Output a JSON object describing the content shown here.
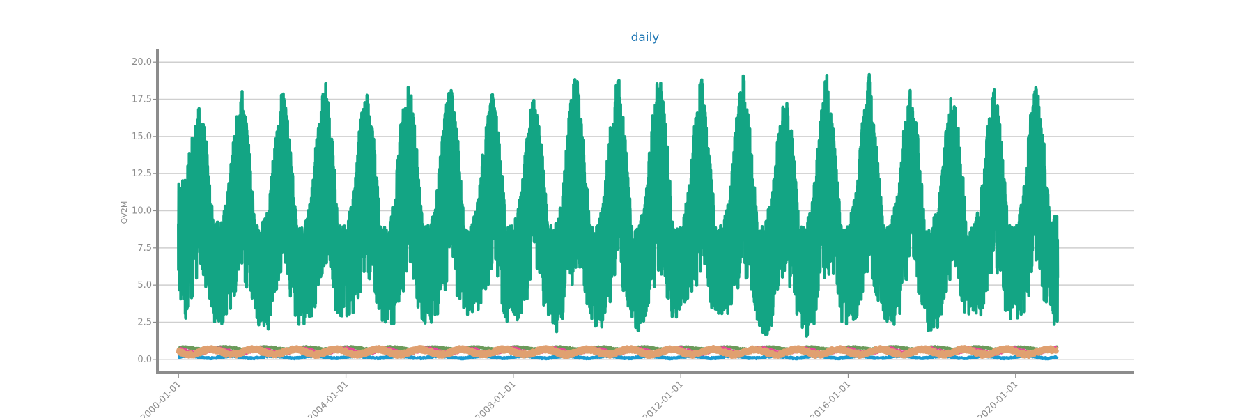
{
  "chart_data": {
    "type": "line",
    "title": "daily",
    "xlabel": "",
    "ylabel": "QV2M",
    "x_type": "date",
    "xlim": [
      "1999-07-01",
      "2022-11-01"
    ],
    "ylim": [
      -0.9,
      20.9
    ],
    "x_ticks": [
      "2000-01-01",
      "2004-01-01",
      "2008-01-01",
      "2012-01-01",
      "2016-01-01",
      "2020-01-01"
    ],
    "x_tick_labels": [
      "2000-01-01",
      "2004-01-01",
      "2008-01-01",
      "2012-01-01",
      "2016-01-01",
      "2020-01-01"
    ],
    "y_ticks": [
      0.0,
      2.5,
      5.0,
      7.5,
      10.0,
      12.5,
      15.0,
      17.5,
      20.0
    ],
    "y_tick_labels": [
      "0.0",
      "2.5",
      "5.0",
      "7.5",
      "10.0",
      "12.5",
      "15.0",
      "17.5",
      "20.0"
    ],
    "grid": "horizontal",
    "data_start": "2000-01-01",
    "data_end": "2021-01-01",
    "series": [
      {
        "color": "#13a584",
        "x": [
          "2000-01-01",
          "2000-03-01",
          "2000-05-01",
          "2000-07-01",
          "2000-09-01",
          "2000-11-01",
          "2001-01-01",
          "2001-03-01",
          "2001-05-01",
          "2001-07-01",
          "2001-09-01",
          "2001-11-01",
          "2002-01-01",
          "2002-03-01",
          "2002-05-01",
          "2002-07-01",
          "2002-09-01",
          "2002-11-01",
          "2003-01-01",
          "2003-03-01",
          "2003-05-01",
          "2003-07-01",
          "2003-09-01",
          "2003-11-01",
          "2004-01-01",
          "2004-03-01",
          "2004-05-01",
          "2004-07-01",
          "2004-09-01",
          "2004-11-01",
          "2005-01-01",
          "2005-03-01",
          "2005-05-01",
          "2005-07-01",
          "2005-09-01",
          "2005-11-01",
          "2006-01-01",
          "2006-03-01",
          "2006-05-01",
          "2006-07-01",
          "2006-09-01",
          "2006-11-01",
          "2007-01-01",
          "2007-03-01",
          "2007-05-01",
          "2007-07-01",
          "2007-09-01",
          "2007-11-01",
          "2008-01-01",
          "2008-03-01",
          "2008-05-01",
          "2008-07-01",
          "2008-09-01",
          "2008-11-01",
          "2009-01-01",
          "2009-03-01",
          "2009-05-01",
          "2009-07-01",
          "2009-09-01",
          "2009-11-01",
          "2010-01-01",
          "2010-03-01",
          "2010-05-01",
          "2010-07-01",
          "2010-09-01",
          "2010-11-01",
          "2011-01-01",
          "2011-03-01",
          "2011-05-01",
          "2011-07-01",
          "2011-09-01",
          "2011-11-01",
          "2012-01-01",
          "2012-03-01",
          "2012-05-01",
          "2012-07-01",
          "2012-09-01",
          "2012-11-01",
          "2013-01-01",
          "2013-03-01",
          "2013-05-01",
          "2013-07-01",
          "2013-09-01",
          "2013-11-01",
          "2014-01-01",
          "2014-03-01",
          "2014-05-01",
          "2014-07-01",
          "2014-09-01",
          "2014-11-01",
          "2015-01-01",
          "2015-03-01",
          "2015-05-01",
          "2015-07-01",
          "2015-09-01",
          "2015-11-01",
          "2016-01-01",
          "2016-03-01",
          "2016-05-01",
          "2016-07-01",
          "2016-09-01",
          "2016-11-01",
          "2017-01-01",
          "2017-03-01",
          "2017-05-01",
          "2017-07-01",
          "2017-09-01",
          "2017-11-01",
          "2018-01-01",
          "2018-03-01",
          "2018-05-01",
          "2018-07-01",
          "2018-09-01",
          "2018-11-01",
          "2019-01-01",
          "2019-03-01",
          "2019-05-01",
          "2019-07-01",
          "2019-09-01",
          "2019-11-01",
          "2020-01-01",
          "2020-03-01",
          "2020-05-01",
          "2020-07-01",
          "2020-09-01",
          "2020-11-01",
          "2021-01-01"
        ],
        "min": [
          2.0,
          2.5,
          4.0,
          6.0,
          4.0,
          2.5,
          2.0,
          2.5,
          4.0,
          6.0,
          4.0,
          2.5,
          2.0,
          2.0,
          4.0,
          6.0,
          4.0,
          2.5,
          1.6,
          2.5,
          4.0,
          6.0,
          4.0,
          2.5,
          2.8,
          3.0,
          4.0,
          6.0,
          4.0,
          2.5,
          2.0,
          2.0,
          4.0,
          6.0,
          4.0,
          2.5,
          2.1,
          2.5,
          4.0,
          6.0,
          4.0,
          2.5,
          2.6,
          3.0,
          4.0,
          6.0,
          4.0,
          2.5,
          2.2,
          2.5,
          4.0,
          6.0,
          4.0,
          2.5,
          1.7,
          2.0,
          4.0,
          6.0,
          4.0,
          2.5,
          1.5,
          2.0,
          4.0,
          6.0,
          4.0,
          2.5,
          1.7,
          2.5,
          4.0,
          6.0,
          4.0,
          2.5,
          3.2,
          3.5,
          4.0,
          6.0,
          4.0,
          2.5,
          3.0,
          3.0,
          4.0,
          6.0,
          4.0,
          2.5,
          0.9,
          2.0,
          4.0,
          6.0,
          4.0,
          2.5,
          1.4,
          2.0,
          4.0,
          6.0,
          4.0,
          2.5,
          1.8,
          2.0,
          4.0,
          6.0,
          4.0,
          2.5,
          1.8,
          2.0,
          4.0,
          6.0,
          4.0,
          2.5,
          1.3,
          2.0,
          4.0,
          6.0,
          4.0,
          2.5,
          2.6,
          2.5,
          4.0,
          6.0,
          4.0,
          2.5,
          2.4,
          2.5,
          4.0,
          6.0,
          4.0,
          2.5,
          2.1
        ],
        "max": [
          11.8,
          12.5,
          15.0,
          17.2,
          15.0,
          9.0,
          9.5,
          11.0,
          15.5,
          18.5,
          15.0,
          9.0,
          9.5,
          11.0,
          15.5,
          18.5,
          15.0,
          9.0,
          9.0,
          11.0,
          16.0,
          19.3,
          15.0,
          9.0,
          9.0,
          11.0,
          16.0,
          18.2,
          15.0,
          9.0,
          9.0,
          11.0,
          16.5,
          19.5,
          15.0,
          9.0,
          9.0,
          11.0,
          16.0,
          18.8,
          15.0,
          9.0,
          9.0,
          11.0,
          15.5,
          18.2,
          15.0,
          9.0,
          9.0,
          11.0,
          15.5,
          18.0,
          15.0,
          9.0,
          9.0,
          11.0,
          16.5,
          19.6,
          15.0,
          9.0,
          9.0,
          11.0,
          16.5,
          19.8,
          15.0,
          9.0,
          9.0,
          11.0,
          16.5,
          19.8,
          15.0,
          9.0,
          9.0,
          11.0,
          16.0,
          19.3,
          15.0,
          9.0,
          9.0,
          11.0,
          16.5,
          19.6,
          15.0,
          9.0,
          9.0,
          11.0,
          15.5,
          18.0,
          15.0,
          9.0,
          9.0,
          11.0,
          16.0,
          19.8,
          15.0,
          9.0,
          9.0,
          11.0,
          16.0,
          19.4,
          15.0,
          9.0,
          9.0,
          11.0,
          15.5,
          18.7,
          15.0,
          9.0,
          9.0,
          11.0,
          15.5,
          18.5,
          15.0,
          9.0,
          9.0,
          11.0,
          15.5,
          18.8,
          15.0,
          9.0,
          9.0,
          11.0,
          16.0,
          18.7,
          15.0,
          9.0,
          10.2
        ]
      },
      {
        "color": "#1b9bd1",
        "level": 0.15,
        "spread": 0.12
      },
      {
        "color": "#6a9a5a",
        "level": 0.75,
        "spread": 0.12
      },
      {
        "color": "#e8469a",
        "level": 0.55,
        "spread": 0.25
      },
      {
        "color": "#e0a070",
        "level": 0.5,
        "spread": 0.3
      }
    ]
  }
}
